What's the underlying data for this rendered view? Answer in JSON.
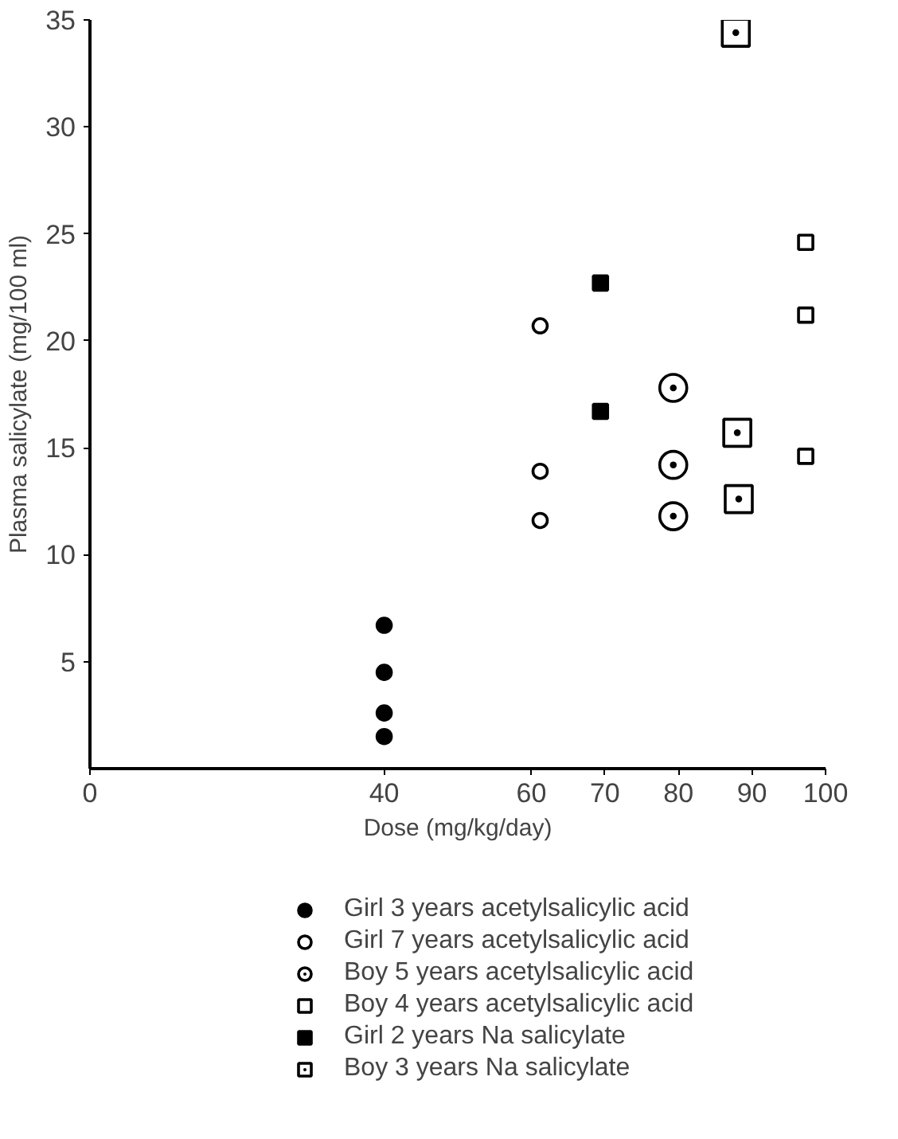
{
  "chart_data": {
    "type": "scatter",
    "xlabel": "Dose (mg/kg/day)",
    "ylabel": "Plasma salicylate (mg/100 ml)",
    "xlim": [
      0,
      100
    ],
    "xticks": [
      0,
      40,
      60,
      70,
      80,
      90,
      100
    ],
    "ylim": [
      0,
      35
    ],
    "yticks": [
      5,
      10,
      15,
      20,
      25,
      30,
      35
    ],
    "grid": false,
    "legend": "bottom",
    "series": [
      {
        "name": "Girl 3 years acetylsalicylic acid",
        "color": "#000000",
        "marker": "circle",
        "x": [
          40,
          40,
          40,
          40
        ],
        "values": [
          6.7,
          4.5,
          2.6,
          1.5
        ]
      },
      {
        "name": "Girl 7 years acetylsalicylic acid",
        "color": "#000000",
        "marker": "circle_open",
        "x": [
          61.2,
          61.2,
          61.2
        ],
        "values": [
          20.7,
          13.9,
          11.6
        ]
      },
      {
        "name": "Boy 5 years acetylsalicylic acid",
        "color": "#000000",
        "marker": "circle_dot",
        "x": [
          79.3,
          79.3,
          79.3
        ],
        "values": [
          17.8,
          14.2,
          11.8
        ]
      },
      {
        "name": "Boy 4 years acetylsalicylic acid",
        "color": "#000000",
        "marker": "square_open",
        "x": [
          97.3,
          97.3,
          97.3
        ],
        "values": [
          24.6,
          21.2,
          14.6
        ]
      },
      {
        "name": "Girl 2 years Na salicylate",
        "color": "#000000",
        "marker": "square",
        "x": [
          69.4,
          69.4
        ],
        "values": [
          22.7,
          16.7
        ]
      },
      {
        "name": "Boy 3 years Na salicylate",
        "color": "#000000",
        "marker": "square_dot",
        "x": [
          87.8,
          88,
          88.2
        ],
        "values": [
          34.4,
          15.7,
          12.6
        ]
      }
    ]
  }
}
